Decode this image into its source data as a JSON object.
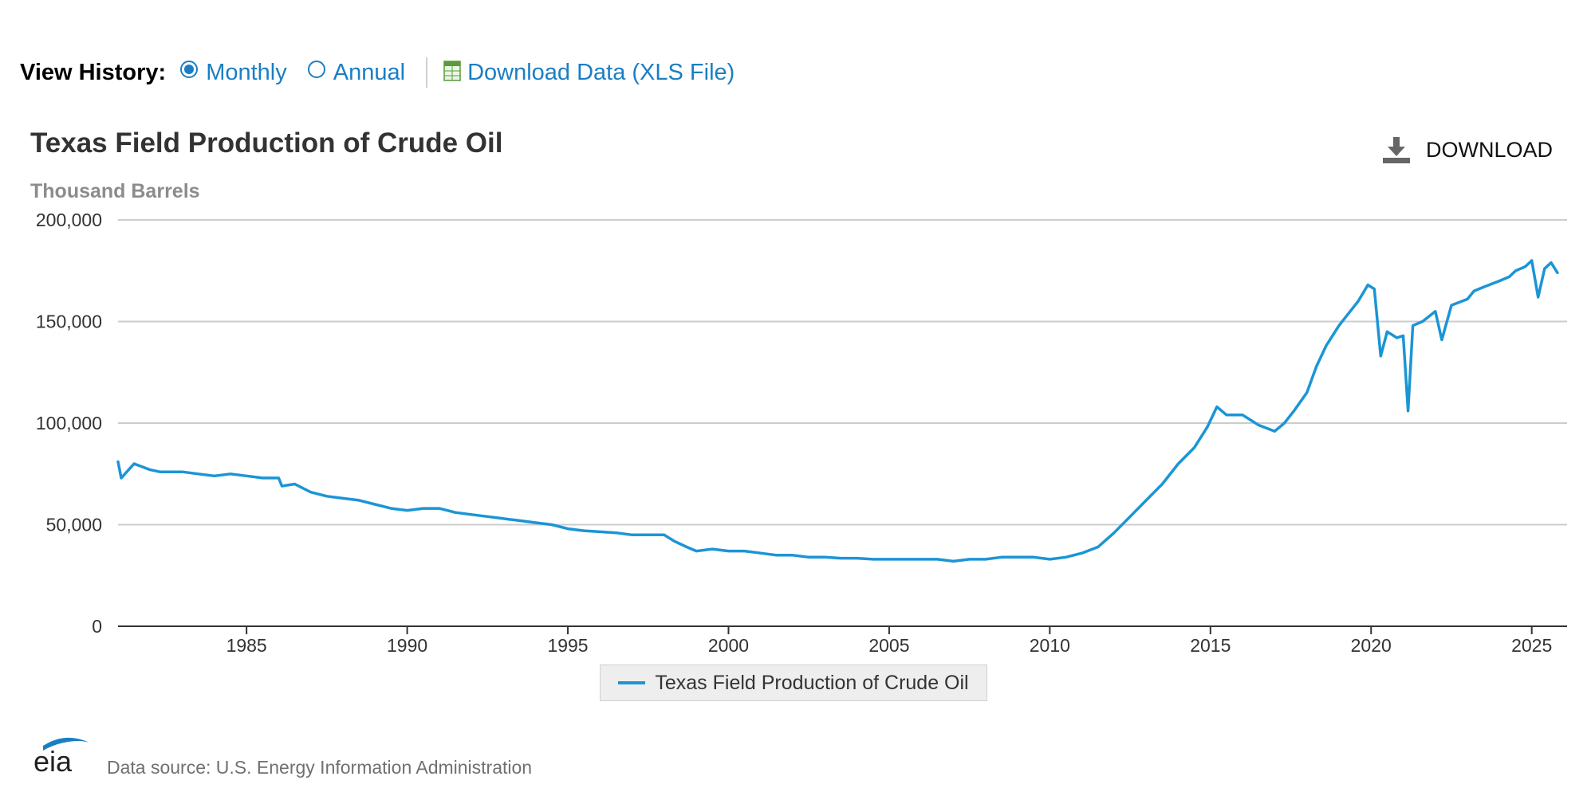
{
  "view_history": {
    "label": "View History:",
    "options": [
      {
        "label": "Monthly",
        "selected": true
      },
      {
        "label": "Annual",
        "selected": false
      }
    ],
    "download_link": "Download Data (XLS File)",
    "xls_icon": "spreadsheet-icon"
  },
  "header": {
    "title": "Texas Field Production of Crude Oil",
    "units": "Thousand Barrels",
    "download_label": "DOWNLOAD",
    "download_icon": "download-icon"
  },
  "footer": {
    "logo_text": "eia",
    "source": "Data source: U.S. Energy Information Administration"
  },
  "colors": {
    "series": "#1b95d6",
    "link": "#1a7ec4",
    "grid": "#cccccc"
  },
  "chart_data": {
    "type": "line",
    "title": "Texas Field Production of Crude Oil",
    "ylabel": "Thousand Barrels",
    "xlabel": "",
    "ylim": [
      0,
      200000
    ],
    "yticks": [
      0,
      50000,
      100000,
      150000,
      200000
    ],
    "ytick_labels": [
      "0",
      "50,000",
      "100,000",
      "150,000",
      "200,000"
    ],
    "xlim": [
      1981.0,
      2026.1
    ],
    "xticks": [
      1985,
      1990,
      1995,
      2000,
      2005,
      2010,
      2015,
      2020,
      2025
    ],
    "xtick_labels": [
      "1985",
      "1990",
      "1995",
      "2000",
      "2005",
      "2010",
      "2015",
      "2020",
      "2025"
    ],
    "grid": true,
    "legend": "bottom-center",
    "series": [
      {
        "name": "Texas Field Production of Crude Oil",
        "x": [
          1981.0,
          1981.1,
          1981.5,
          1982.0,
          1982.3,
          1983.0,
          1983.5,
          1984.0,
          1984.5,
          1985.0,
          1985.5,
          1986.0,
          1986.1,
          1986.5,
          1987.0,
          1987.5,
          1988.0,
          1988.5,
          1989.0,
          1989.5,
          1990.0,
          1990.5,
          1991.0,
          1991.5,
          1992.0,
          1992.5,
          1993.0,
          1993.5,
          1994.0,
          1994.5,
          1995.0,
          1995.5,
          1996.0,
          1996.5,
          1997.0,
          1997.5,
          1998.0,
          1998.3,
          1998.7,
          1999.0,
          1999.5,
          2000.0,
          2000.5,
          2001.0,
          2001.5,
          2002.0,
          2002.5,
          2003.0,
          2003.5,
          2004.0,
          2004.5,
          2005.0,
          2005.5,
          2006.0,
          2006.5,
          2007.0,
          2007.5,
          2008.0,
          2008.5,
          2009.0,
          2009.5,
          2010.0,
          2010.5,
          2011.0,
          2011.5,
          2012.0,
          2012.5,
          2013.0,
          2013.5,
          2014.0,
          2014.5,
          2014.9,
          2015.2,
          2015.5,
          2016.0,
          2016.5,
          2017.0,
          2017.3,
          2017.6,
          2018.0,
          2018.3,
          2018.6,
          2019.0,
          2019.3,
          2019.6,
          2019.9,
          2020.1,
          2020.3,
          2020.5,
          2020.8,
          2021.0,
          2021.15,
          2021.3,
          2021.6,
          2022.0,
          2022.2,
          2022.5,
          2023.0,
          2023.2,
          2023.5,
          2024.0,
          2024.3,
          2024.5,
          2024.8,
          2025.0,
          2025.2,
          2025.4,
          2025.6,
          2025.8
        ],
        "y": [
          81000,
          73000,
          80000,
          77000,
          76000,
          76000,
          75000,
          74000,
          75000,
          74000,
          73000,
          73000,
          69000,
          70000,
          66000,
          64000,
          63000,
          62000,
          60000,
          58000,
          57000,
          58000,
          58000,
          56000,
          55000,
          54000,
          53000,
          52000,
          51000,
          50000,
          48000,
          47000,
          46500,
          46000,
          45000,
          45000,
          45000,
          42000,
          39000,
          37000,
          38000,
          37000,
          37000,
          36000,
          35000,
          35000,
          34000,
          34000,
          33500,
          33500,
          33000,
          33000,
          33000,
          33000,
          33000,
          32000,
          33000,
          33000,
          34000,
          34000,
          34000,
          33000,
          34000,
          36000,
          39000,
          46000,
          54000,
          62000,
          70000,
          80000,
          88000,
          98000,
          108000,
          104000,
          104000,
          99000,
          96000,
          100000,
          106000,
          115000,
          128000,
          138000,
          148000,
          154000,
          160000,
          168000,
          166000,
          133000,
          145000,
          142000,
          143000,
          106000,
          148000,
          150000,
          155000,
          141000,
          158000,
          161000,
          165000,
          167000,
          170000,
          172000,
          175000,
          177000,
          180000,
          162000,
          176000,
          179000,
          174000
        ]
      }
    ]
  }
}
